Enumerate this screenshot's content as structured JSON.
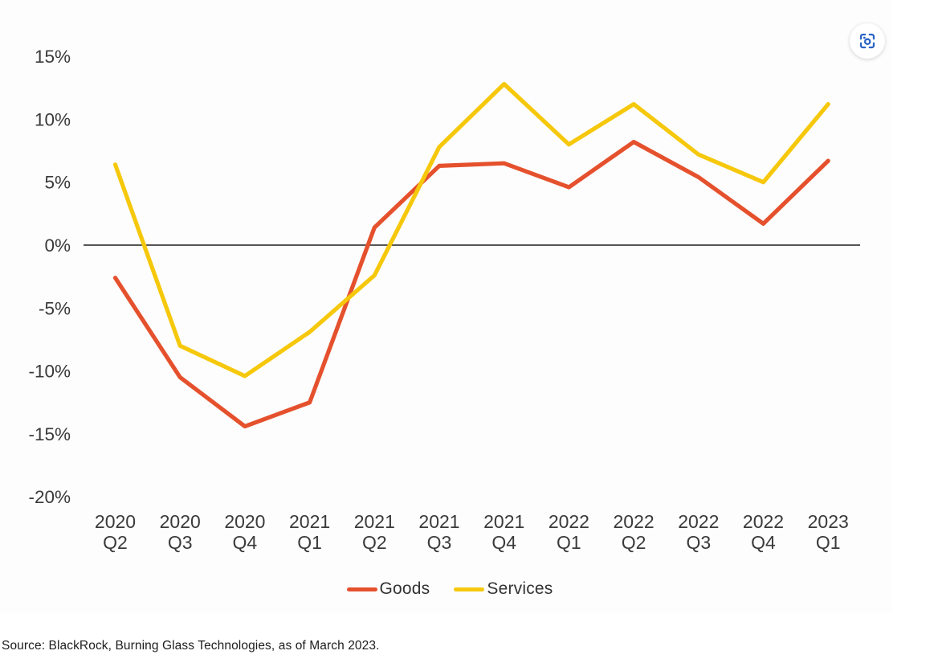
{
  "chart_data": {
    "type": "line",
    "categories": [
      "2020 Q2",
      "2020 Q3",
      "2020 Q4",
      "2021 Q1",
      "2021 Q2",
      "2021 Q3",
      "2021 Q4",
      "2022 Q1",
      "2022 Q2",
      "2022 Q3",
      "2022 Q4",
      "2023 Q1"
    ],
    "series": [
      {
        "name": "Goods",
        "color": "#E5512D",
        "values": [
          -2.6,
          -10.5,
          -14.4,
          -12.5,
          1.4,
          6.3,
          6.5,
          4.6,
          8.2,
          5.4,
          1.7,
          6.7
        ]
      },
      {
        "name": "Services",
        "color": "#F6C80C",
        "values": [
          6.4,
          -8.0,
          -10.4,
          -6.9,
          -2.4,
          7.8,
          12.8,
          8.0,
          11.2,
          7.2,
          5.0,
          11.2
        ]
      }
    ],
    "title": "",
    "xlabel": "",
    "ylabel": "",
    "ylim": [
      -20,
      15
    ],
    "y_ticks": [
      15,
      10,
      5,
      0,
      -5,
      -10,
      -15,
      -20
    ],
    "y_tick_suffix": "%",
    "grid": false,
    "zero_line": true,
    "legend_position": "bottom"
  },
  "axis_style": {
    "tick_color": "#3a3a3a",
    "zero_line_color": "#1f1f1f"
  },
  "controls": {
    "screenshot_button_label": "screenshot",
    "screenshot_icon_color": "#2B63C6"
  },
  "source_note": "Source: BlackRock, Burning Glass Technologies, as of March 2023."
}
